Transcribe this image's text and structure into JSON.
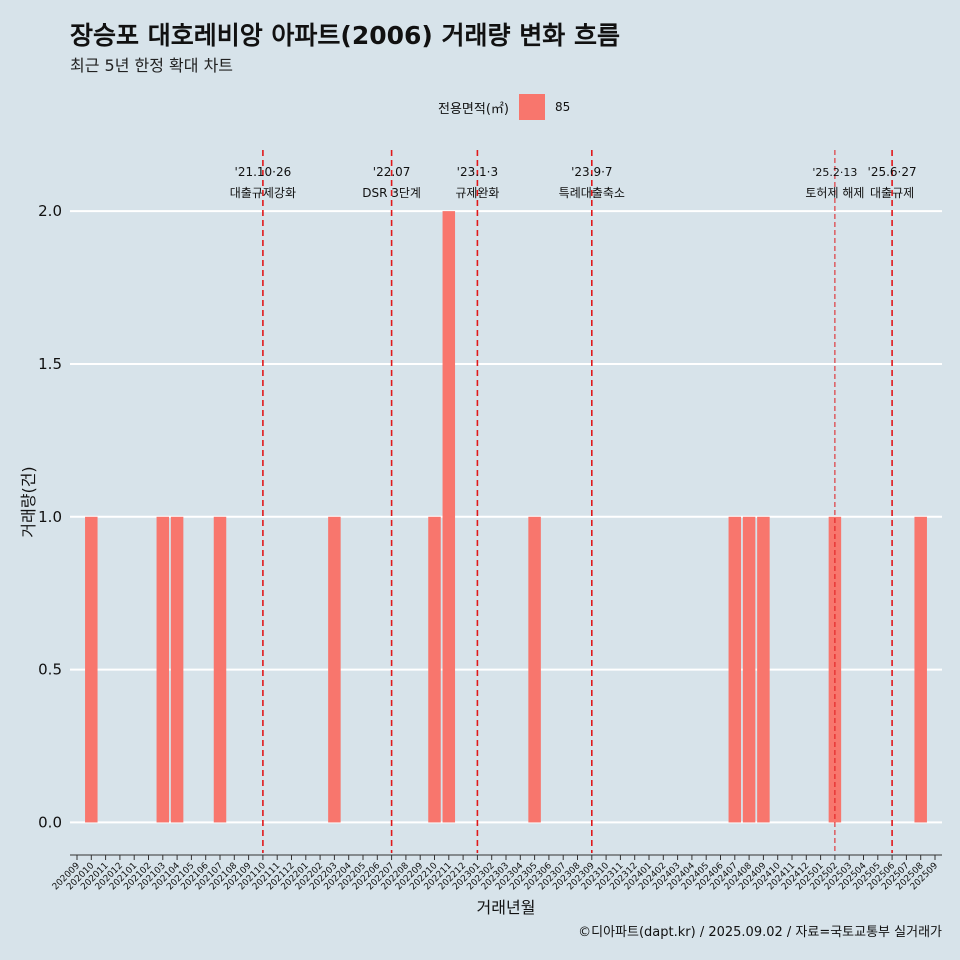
{
  "title": "장승포 대호레비앙 아파트(2006) 거래량 변화 흐름",
  "subtitle": "최근 5년 한정 확대 차트",
  "legend": {
    "title": "전용면적(㎡)",
    "label": "85",
    "color": "#f8766d"
  },
  "caption": "©디아파트(dapt.kr) / 2025.09.02 / 자료=국토교통부 실거래가",
  "colors": {
    "background": "#d7e3ea",
    "bar": "#f8766d",
    "event_line": "#e0181b",
    "grid": "#ffffff"
  },
  "chart_data": {
    "type": "bar",
    "title": "장승포 대호레비앙 아파트(2006) 거래량 변화 흐름",
    "subtitle": "최근 5년 한정 확대 차트",
    "xlabel": "거래년월",
    "ylabel": "거래량(건)",
    "ylim": [
      -0.1,
      2.2
    ],
    "yticks": [
      "0.0",
      "0.5",
      "1.0",
      "1.5",
      "2.0"
    ],
    "grid": true,
    "legend_position": "top",
    "categories": [
      "202009",
      "202010",
      "202011",
      "202012",
      "202101",
      "202102",
      "202103",
      "202104",
      "202105",
      "202106",
      "202107",
      "202108",
      "202109",
      "202110",
      "202111",
      "202112",
      "202201",
      "202202",
      "202203",
      "202204",
      "202205",
      "202206",
      "202207",
      "202208",
      "202209",
      "202210",
      "202211",
      "202212",
      "202301",
      "202302",
      "202303",
      "202304",
      "202305",
      "202306",
      "202307",
      "202308",
      "202309",
      "202310",
      "202311",
      "202312",
      "202401",
      "202402",
      "202403",
      "202404",
      "202405",
      "202406",
      "202407",
      "202408",
      "202409",
      "202410",
      "202411",
      "202412",
      "202501",
      "202502",
      "202503",
      "202504",
      "202505",
      "202506",
      "202507",
      "202508",
      "202509"
    ],
    "series": [
      {
        "name": "85",
        "values": [
          0,
          1,
          0,
          0,
          0,
          0,
          1,
          1,
          0,
          0,
          1,
          0,
          0,
          0,
          0,
          0,
          0,
          0,
          1,
          0,
          0,
          0,
          0,
          0,
          0,
          1,
          2,
          0,
          0,
          0,
          0,
          0,
          1,
          0,
          0,
          0,
          0,
          0,
          0,
          0,
          0,
          0,
          0,
          0,
          0,
          0,
          1,
          1,
          1,
          0,
          0,
          0,
          0,
          1,
          0,
          0,
          0,
          0,
          0,
          1,
          0
        ]
      }
    ],
    "annotations": [
      {
        "x": "202110",
        "date": "'21.10·26",
        "label": "대출규제강화",
        "style": "dashed"
      },
      {
        "x": "202207",
        "date": "'22.07",
        "label": "DSR 3단계",
        "style": "dashed"
      },
      {
        "x": "202301",
        "date": "'23.1·3",
        "label": "규제완화",
        "style": "dashed"
      },
      {
        "x": "202309",
        "date": "'23.9·7",
        "label": "특례대출축소",
        "style": "dashed"
      },
      {
        "x": "202502",
        "date": "'25.2·13",
        "label": "토허제 해제",
        "style": "thin-dashed"
      },
      {
        "x": "202506",
        "date": "'25.6·27",
        "label": "대출규제",
        "style": "dashed"
      }
    ]
  }
}
